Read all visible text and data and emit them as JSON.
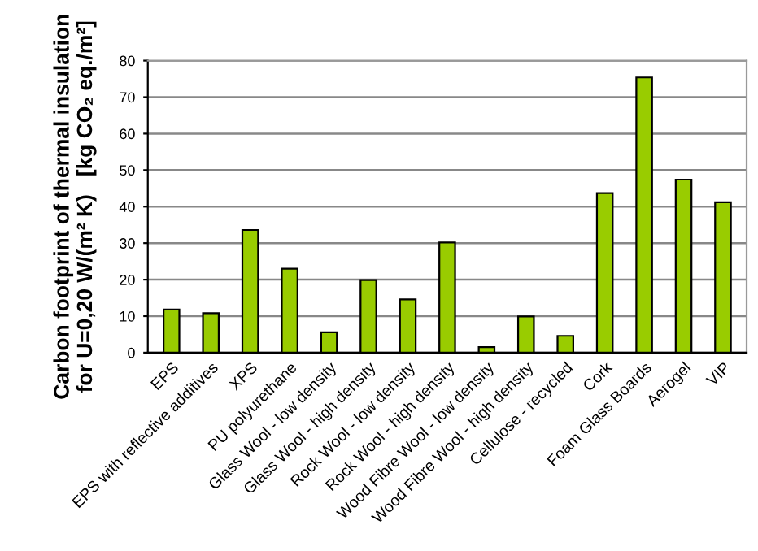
{
  "chart_data": {
    "type": "bar",
    "ylabel": "Carbon footprint of thermal insulation\nfor U=0,20 W/(m² K)   [kg CO₂ eq./m²]",
    "categories": [
      "EPS",
      "EPS with reflective additives",
      "XPS",
      "PU polyurethane",
      "Glass Wool - low density",
      "Glass Wool - high density",
      "Rock Wool - low density",
      "Rock Wool - high density",
      "Wood Fibre Wool - low density",
      "Wood Fibre Wool - high density",
      "Cellulose - recycled",
      "Cork",
      "Foam Glass Boards",
      "Aerogel",
      "VIP"
    ],
    "values": [
      11.8,
      10.8,
      33.6,
      23.0,
      5.6,
      19.9,
      14.6,
      30.2,
      1.5,
      9.9,
      4.6,
      43.7,
      75.4,
      47.4,
      41.2
    ],
    "color": "#99cc00",
    "ylim": [
      0,
      80
    ],
    "yticks": [
      0,
      10,
      20,
      30,
      40,
      50,
      60,
      70,
      80
    ],
    "grid": "y",
    "legend": false
  }
}
